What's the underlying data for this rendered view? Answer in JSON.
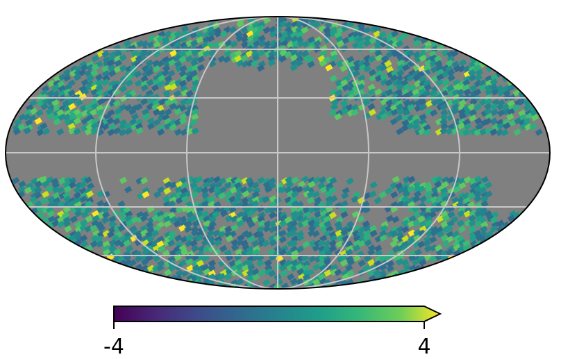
{
  "projection": "mollweide",
  "background_color": "#808080",
  "graticule_color": "#c8c8c8",
  "colormap": "viridis",
  "colorbar": {
    "min_label": "-4",
    "max_label": "4",
    "min": -4,
    "max": 4,
    "extend": "max"
  }
}
